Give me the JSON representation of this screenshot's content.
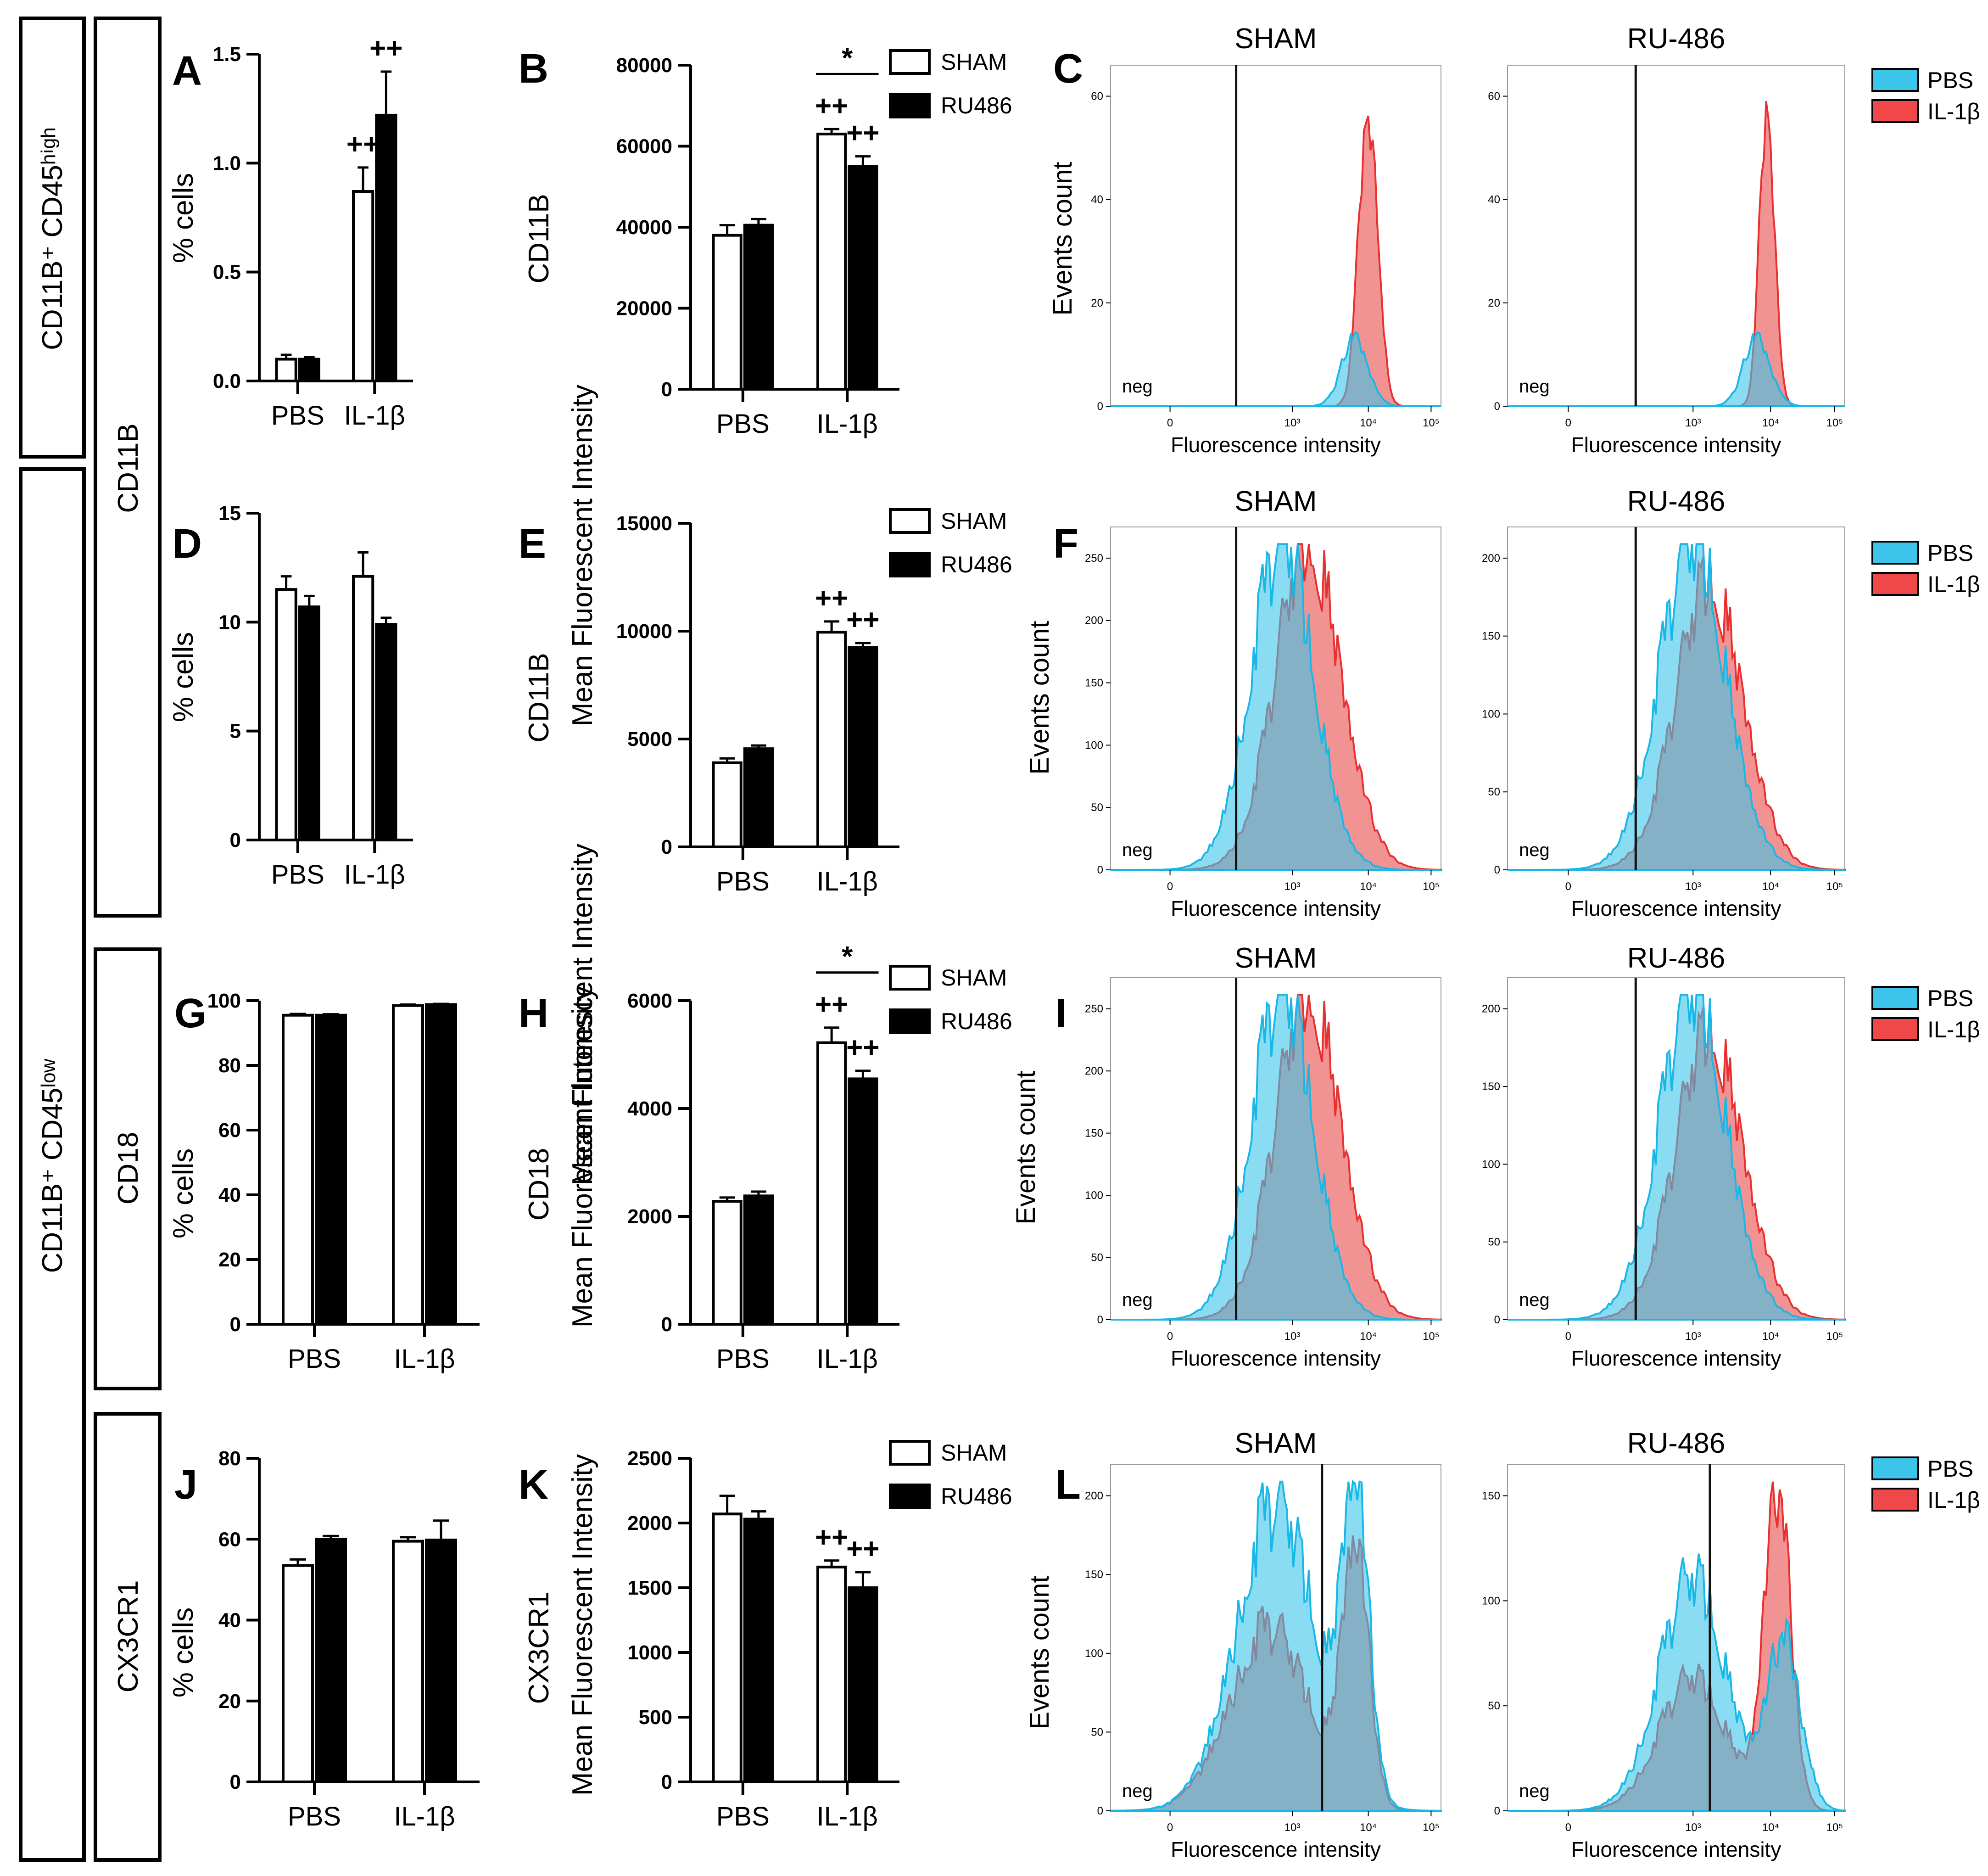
{
  "side_labels": {
    "gate_high": "CD11B⁺ CD45ʰⁱᵍʰ",
    "gate_low": "CD11B⁺ CD45ˡᵒʷ",
    "marker_cd11b": "CD11B",
    "marker_cd18": "CD18",
    "marker_cx3cr1": "CX3CR1"
  },
  "chart_data": [
    {
      "type": "bar",
      "panel": "A",
      "ylabel": "% cells",
      "categories": [
        "PBS",
        "IL-1β"
      ],
      "ylim": [
        0,
        1.5
      ],
      "yticks": [
        "0.0",
        "0.5",
        "1.0",
        "1.5"
      ],
      "series": [
        {
          "name": "SHAM",
          "color": "#ffffff",
          "values": [
            0.1,
            0.87
          ],
          "errors": [
            0.02,
            0.11
          ]
        },
        {
          "name": "RU486",
          "color": "#000000",
          "values": [
            0.1,
            1.22
          ],
          "errors": [
            0.01,
            0.2
          ]
        }
      ],
      "annotations": [
        "++",
        "++"
      ]
    },
    {
      "type": "bar",
      "panel": "B",
      "ylabel": "Mean Fluorescent Intensity",
      "ylabel2": "CD11B",
      "categories": [
        "PBS",
        "IL-1β"
      ],
      "ylim": [
        0,
        80000
      ],
      "yticks": [
        "0",
        "20000",
        "40000",
        "60000",
        "80000"
      ],
      "series": [
        {
          "name": "SHAM",
          "color": "#ffffff",
          "values": [
            38000,
            63000
          ],
          "errors": [
            2500,
            1200
          ]
        },
        {
          "name": "RU486",
          "color": "#000000",
          "values": [
            40500,
            55000
          ],
          "errors": [
            1500,
            2500
          ]
        }
      ],
      "annotations": [
        "++",
        "++",
        "*"
      ],
      "legend": [
        "SHAM",
        "RU486"
      ]
    },
    {
      "type": "histogram",
      "panel": "C",
      "titles": [
        "SHAM",
        "RU-486"
      ],
      "ylabel": "Events count",
      "xlabel": "Fluorescence intensity",
      "gate_label": "neg",
      "legend": [
        "PBS",
        "IL-1β"
      ],
      "yticks_left": [
        "0",
        "20",
        "40",
        "60"
      ],
      "yticks_right": [
        "0",
        "20",
        "40",
        "60"
      ],
      "xticks": [
        "0",
        "10³",
        "10⁴",
        "10⁵"
      ]
    },
    {
      "type": "bar",
      "panel": "D",
      "ylabel": "% cells",
      "categories": [
        "PBS",
        "IL-1β"
      ],
      "ylim": [
        0,
        15
      ],
      "yticks": [
        "0",
        "5",
        "10",
        "15"
      ],
      "series": [
        {
          "name": "SHAM",
          "color": "#ffffff",
          "values": [
            11.5,
            12.1
          ],
          "errors": [
            0.6,
            1.1
          ]
        },
        {
          "name": "RU486",
          "color": "#000000",
          "values": [
            10.7,
            9.9
          ],
          "errors": [
            0.5,
            0.3
          ]
        }
      ]
    },
    {
      "type": "bar",
      "panel": "E",
      "ylabel": "Mean Fluorescent Intensity",
      "ylabel2": "CD11B",
      "categories": [
        "PBS",
        "IL-1β"
      ],
      "ylim": [
        0,
        15000
      ],
      "yticks": [
        "0",
        "5000",
        "10000",
        "15000"
      ],
      "series": [
        {
          "name": "SHAM",
          "color": "#ffffff",
          "values": [
            3900,
            9950
          ],
          "errors": [
            200,
            500
          ]
        },
        {
          "name": "RU486",
          "color": "#000000",
          "values": [
            4550,
            9250
          ],
          "errors": [
            150,
            200
          ]
        }
      ],
      "annotations": [
        "++",
        "++"
      ],
      "legend": [
        "SHAM",
        "RU486"
      ]
    },
    {
      "type": "histogram",
      "panel": "F",
      "titles": [
        "SHAM",
        "RU-486"
      ],
      "ylabel": "Events count",
      "xlabel": "Fluorescence intensity",
      "gate_label": "neg",
      "legend": [
        "PBS",
        "IL-1β"
      ],
      "yticks_left": [
        "0",
        "50",
        "100",
        "150",
        "200",
        "250"
      ],
      "yticks_right": [
        "0",
        "50",
        "100",
        "150",
        "200"
      ],
      "xticks": [
        "0",
        "10³",
        "10⁴",
        "10⁵"
      ]
    },
    {
      "type": "bar",
      "panel": "G",
      "ylabel": "% cells",
      "categories": [
        "PBS",
        "IL-1β"
      ],
      "ylim": [
        0,
        100
      ],
      "yticks": [
        "0",
        "20",
        "40",
        "60",
        "80",
        "100"
      ],
      "series": [
        {
          "name": "SHAM",
          "color": "#ffffff",
          "values": [
            95.5,
            98.5
          ],
          "errors": [
            0.4,
            0.3
          ]
        },
        {
          "name": "RU486",
          "color": "#000000",
          "values": [
            95.5,
            98.8
          ],
          "errors": [
            0.3,
            0.2
          ]
        }
      ]
    },
    {
      "type": "bar",
      "panel": "H",
      "ylabel": "Mean Fluorescent Intensity",
      "ylabel2": "CD18",
      "categories": [
        "PBS",
        "IL-1β"
      ],
      "ylim": [
        0,
        6000
      ],
      "yticks": [
        "0",
        "2000",
        "4000",
        "6000"
      ],
      "series": [
        {
          "name": "SHAM",
          "color": "#ffffff",
          "values": [
            2280,
            5220
          ],
          "errors": [
            70,
            280
          ]
        },
        {
          "name": "RU486",
          "color": "#000000",
          "values": [
            2380,
            4550
          ],
          "errors": [
            80,
            150
          ]
        }
      ],
      "annotations": [
        "++",
        "++",
        "*"
      ],
      "legend": [
        "SHAM",
        "RU486"
      ]
    },
    {
      "type": "histogram",
      "panel": "I",
      "titles": [
        "SHAM",
        "RU-486"
      ],
      "ylabel": "Events count",
      "xlabel": "Fluorescence intensity",
      "gate_label": "neg",
      "legend": [
        "PBS",
        "IL-1β"
      ],
      "yticks_left": [
        "0",
        "50",
        "100",
        "150",
        "200",
        "250"
      ],
      "yticks_right": [
        "0",
        "50",
        "100",
        "150",
        "200"
      ],
      "xticks": [
        "0",
        "10³",
        "10⁴",
        "10⁵"
      ]
    },
    {
      "type": "bar",
      "panel": "J",
      "ylabel": "% cells",
      "categories": [
        "PBS",
        "IL-1β"
      ],
      "ylim": [
        0,
        80
      ],
      "yticks": [
        "0",
        "20",
        "40",
        "60",
        "80"
      ],
      "series": [
        {
          "name": "SHAM",
          "color": "#ffffff",
          "values": [
            53.5,
            59.5
          ],
          "errors": [
            1.5,
            1.0
          ]
        },
        {
          "name": "RU486",
          "color": "#000000",
          "values": [
            60.0,
            59.8
          ],
          "errors": [
            0.8,
            4.8
          ]
        }
      ]
    },
    {
      "type": "bar",
      "panel": "K",
      "ylabel": "Mean Fluorescent Intensity",
      "ylabel2": "CX3CR1",
      "categories": [
        "PBS",
        "IL-1β"
      ],
      "ylim": [
        0,
        2500
      ],
      "yticks": [
        "0",
        "500",
        "1000",
        "1500",
        "2000",
        "2500"
      ],
      "series": [
        {
          "name": "SHAM",
          "color": "#ffffff",
          "values": [
            2070,
            1660
          ],
          "errors": [
            140,
            50
          ]
        },
        {
          "name": "RU486",
          "color": "#000000",
          "values": [
            2030,
            1500
          ],
          "errors": [
            60,
            120
          ]
        }
      ],
      "annotations": [
        "++",
        "++"
      ],
      "legend": [
        "SHAM",
        "RU486"
      ]
    },
    {
      "type": "histogram",
      "panel": "L",
      "titles": [
        "SHAM",
        "RU-486"
      ],
      "ylabel": "Events count",
      "xlabel": "Fluorescence intensity",
      "gate_label": "neg",
      "legend": [
        "PBS",
        "IL-1β"
      ],
      "yticks_left": [
        "0",
        "50",
        "100",
        "150",
        "200"
      ],
      "yticks_right": [
        "0",
        "50",
        "100",
        "150"
      ],
      "xticks": [
        "0",
        "10³",
        "10⁴",
        "10⁵"
      ]
    }
  ]
}
